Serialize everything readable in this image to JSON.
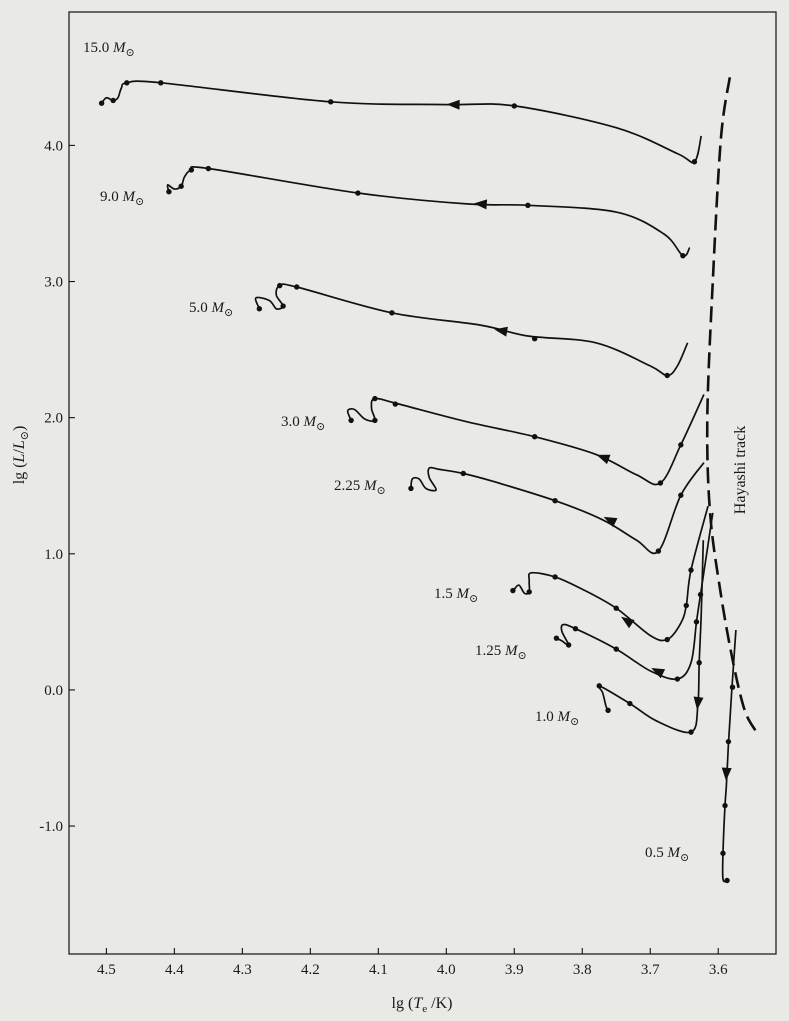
{
  "chart_data": {
    "type": "line",
    "title": "",
    "xlabel": {
      "prefix": "lg (",
      "var": "T",
      "sub": "e",
      "suffix": " /K)"
    },
    "ylabel": {
      "prefix": "lg (",
      "var": "L",
      "slash": "/",
      "var2": "L",
      "sub": "⊙",
      "suffix": ")"
    },
    "x_reversed": true,
    "xlim": [
      4.555,
      3.515
    ],
    "ylim": [
      -1.94,
      4.98
    ],
    "x_ticks": [
      {
        "value": 4.5,
        "label": "4.5"
      },
      {
        "value": 4.4,
        "label": "4.4"
      },
      {
        "value": 4.3,
        "label": "4.3"
      },
      {
        "value": 4.2,
        "label": "4.2"
      },
      {
        "value": 4.1,
        "label": "4.1"
      },
      {
        "value": 4.0,
        "label": "4.0"
      },
      {
        "value": 3.9,
        "label": "3.9"
      },
      {
        "value": 3.8,
        "label": "3.8"
      },
      {
        "value": 3.7,
        "label": "3.7"
      },
      {
        "value": 3.6,
        "label": "3.6"
      }
    ],
    "y_ticks": [
      {
        "value": 4.0,
        "label": "4.0"
      },
      {
        "value": 3.0,
        "label": "3.0"
      },
      {
        "value": 2.0,
        "label": "2.0"
      },
      {
        "value": 1.0,
        "label": "1.0"
      },
      {
        "value": 0.0,
        "label": "0.0"
      },
      {
        "value": -1.0,
        "label": "-1.0"
      }
    ],
    "grid": false,
    "colors": {
      "ink": "#111111",
      "background": "#e9e9e6"
    },
    "annotations": [
      {
        "text": "Hayashi track"
      }
    ],
    "hayashi_track": [
      [
        3.583,
        4.5
      ],
      [
        3.596,
        4.05
      ],
      [
        3.608,
        3.0
      ],
      [
        3.616,
        2.0
      ],
      [
        3.612,
        1.3
      ],
      [
        3.596,
        0.7
      ],
      [
        3.578,
        0.2
      ],
      [
        3.561,
        -0.15
      ],
      [
        3.545,
        -0.3
      ]
    ],
    "series": [
      {
        "label": {
          "mass": "15.0",
          "unit": "M",
          "sub": "⊙"
        },
        "points": [
          [
            3.625,
            4.07
          ],
          [
            3.635,
            3.88
          ],
          [
            3.66,
            3.94
          ],
          [
            3.75,
            4.13
          ],
          [
            3.9,
            4.29
          ],
          [
            4.0,
            4.3
          ],
          [
            4.17,
            4.32
          ],
          [
            4.42,
            4.46
          ],
          [
            4.47,
            4.46
          ],
          [
            4.478,
            4.42
          ],
          [
            4.483,
            4.35
          ],
          [
            4.49,
            4.33
          ],
          [
            4.5,
            4.35
          ],
          [
            4.507,
            4.31
          ]
        ],
        "dots": [
          [
            3.635,
            3.88
          ],
          [
            3.9,
            4.29
          ],
          [
            4.17,
            4.32
          ],
          [
            4.42,
            4.46
          ],
          [
            4.47,
            4.46
          ],
          [
            4.49,
            4.33
          ],
          [
            4.507,
            4.31
          ]
        ],
        "arrows": [
          [
            3.99,
            4.3
          ]
        ]
      },
      {
        "label": {
          "mass": "9.0",
          "unit": "M",
          "sub": "⊙"
        },
        "points": [
          [
            3.642,
            3.25
          ],
          [
            3.652,
            3.19
          ],
          [
            3.68,
            3.35
          ],
          [
            3.75,
            3.51
          ],
          [
            3.88,
            3.56
          ],
          [
            3.97,
            3.57
          ],
          [
            4.13,
            3.65
          ],
          [
            4.35,
            3.83
          ],
          [
            4.375,
            3.82
          ],
          [
            4.385,
            3.77
          ],
          [
            4.39,
            3.7
          ],
          [
            4.4,
            3.68
          ],
          [
            4.41,
            3.71
          ],
          [
            4.408,
            3.66
          ]
        ],
        "dots": [
          [
            3.652,
            3.19
          ],
          [
            3.88,
            3.56
          ],
          [
            4.13,
            3.65
          ],
          [
            4.35,
            3.83
          ],
          [
            4.375,
            3.82
          ],
          [
            4.39,
            3.7
          ],
          [
            4.408,
            3.66
          ]
        ],
        "arrows": [
          [
            3.95,
            3.57
          ]
        ]
      },
      {
        "label": {
          "mass": "5.0",
          "unit": "M",
          "sub": "⊙"
        },
        "points": [
          [
            3.645,
            2.55
          ],
          [
            3.66,
            2.38
          ],
          [
            3.675,
            2.31
          ],
          [
            3.7,
            2.38
          ],
          [
            3.78,
            2.55
          ],
          [
            3.88,
            2.6
          ],
          [
            3.95,
            2.68
          ],
          [
            4.08,
            2.77
          ],
          [
            4.22,
            2.96
          ],
          [
            4.245,
            2.97
          ],
          [
            4.25,
            2.9
          ],
          [
            4.24,
            2.82
          ],
          [
            4.25,
            2.8
          ],
          [
            4.26,
            2.86
          ],
          [
            4.28,
            2.88
          ],
          [
            4.275,
            2.8
          ]
        ],
        "dots": [
          [
            3.675,
            2.31
          ],
          [
            3.87,
            2.58
          ],
          [
            4.08,
            2.77
          ],
          [
            4.22,
            2.96
          ],
          [
            4.245,
            2.97
          ],
          [
            4.24,
            2.82
          ],
          [
            4.275,
            2.8
          ]
        ],
        "arrows": [
          [
            3.92,
            2.64
          ]
        ]
      },
      {
        "label": {
          "mass": "3.0",
          "unit": "M",
          "sub": "⊙"
        },
        "points": [
          [
            3.621,
            2.17
          ],
          [
            3.655,
            1.8
          ],
          [
            3.685,
            1.52
          ],
          [
            3.72,
            1.58
          ],
          [
            3.78,
            1.73
          ],
          [
            3.87,
            1.86
          ],
          [
            3.97,
            1.97
          ],
          [
            4.07,
            2.1
          ],
          [
            4.105,
            2.14
          ],
          [
            4.11,
            2.07
          ],
          [
            4.105,
            1.98
          ],
          [
            4.12,
            1.99
          ],
          [
            4.135,
            2.06
          ],
          [
            4.145,
            2.05
          ],
          [
            4.14,
            1.98
          ]
        ],
        "dots": [
          [
            3.655,
            1.8
          ],
          [
            3.685,
            1.52
          ],
          [
            3.87,
            1.86
          ],
          [
            4.075,
            2.1
          ],
          [
            4.105,
            2.14
          ],
          [
            4.105,
            1.98
          ],
          [
            4.14,
            1.98
          ]
        ],
        "arrows": [
          [
            3.77,
            1.71
          ]
        ]
      },
      {
        "label": {
          "mass": "2.25",
          "unit": "M",
          "sub": "⊙"
        },
        "points": [
          [
            3.621,
            1.67
          ],
          [
            3.655,
            1.43
          ],
          [
            3.688,
            1.02
          ],
          [
            3.72,
            1.1
          ],
          [
            3.77,
            1.25
          ],
          [
            3.84,
            1.39
          ],
          [
            3.93,
            1.53
          ],
          [
            3.975,
            1.59
          ],
          [
            4.01,
            1.62
          ],
          [
            4.025,
            1.63
          ],
          [
            4.025,
            1.56
          ],
          [
            4.015,
            1.47
          ],
          [
            4.03,
            1.48
          ],
          [
            4.04,
            1.55
          ],
          [
            4.05,
            1.55
          ],
          [
            4.052,
            1.48
          ]
        ],
        "dots": [
          [
            3.655,
            1.43
          ],
          [
            3.688,
            1.02
          ],
          [
            3.84,
            1.39
          ],
          [
            3.975,
            1.59
          ],
          [
            4.052,
            1.48
          ]
        ],
        "arrows": [
          [
            3.76,
            1.25
          ]
        ]
      },
      {
        "label": {
          "mass": "1.5",
          "unit": "M",
          "sub": "⊙"
        },
        "points": [
          [
            3.615,
            1.35
          ],
          [
            3.64,
            0.88
          ],
          [
            3.647,
            0.62
          ],
          [
            3.655,
            0.49
          ],
          [
            3.675,
            0.37
          ],
          [
            3.7,
            0.4
          ],
          [
            3.75,
            0.6
          ],
          [
            3.8,
            0.74
          ],
          [
            3.84,
            0.83
          ],
          [
            3.875,
            0.86
          ],
          [
            3.878,
            0.8
          ],
          [
            3.878,
            0.72
          ],
          [
            3.885,
            0.71
          ],
          [
            3.893,
            0.77
          ],
          [
            3.9,
            0.74
          ],
          [
            3.902,
            0.73
          ]
        ],
        "dots": [
          [
            3.64,
            0.88
          ],
          [
            3.647,
            0.62
          ],
          [
            3.675,
            0.37
          ],
          [
            3.75,
            0.6
          ],
          [
            3.84,
            0.83
          ],
          [
            3.878,
            0.72
          ],
          [
            3.902,
            0.73
          ]
        ],
        "arrows": [
          [
            3.735,
            0.51
          ]
        ]
      },
      {
        "label": {
          "mass": "1.25",
          "unit": "M",
          "sub": "⊙"
        },
        "points": [
          [
            3.608,
            1.3
          ],
          [
            3.626,
            0.7
          ],
          [
            3.632,
            0.5
          ],
          [
            3.64,
            0.2
          ],
          [
            3.66,
            0.08
          ],
          [
            3.7,
            0.14
          ],
          [
            3.75,
            0.3
          ],
          [
            3.81,
            0.45
          ],
          [
            3.828,
            0.48
          ],
          [
            3.83,
            0.43
          ],
          [
            3.82,
            0.33
          ],
          [
            3.83,
            0.36
          ],
          [
            3.838,
            0.38
          ]
        ],
        "dots": [
          [
            3.626,
            0.7
          ],
          [
            3.632,
            0.5
          ],
          [
            3.66,
            0.08
          ],
          [
            3.75,
            0.3
          ],
          [
            3.81,
            0.45
          ],
          [
            3.82,
            0.33
          ],
          [
            3.838,
            0.38
          ]
        ],
        "arrows": [
          [
            3.69,
            0.14
          ]
        ]
      },
      {
        "label": {
          "mass": "1.0",
          "unit": "M",
          "sub": "⊙"
        },
        "points": [
          [
            3.622,
            1.1
          ],
          [
            3.625,
            0.55
          ],
          [
            3.628,
            0.2
          ],
          [
            3.63,
            -0.12
          ],
          [
            3.64,
            -0.31
          ],
          [
            3.69,
            -0.23
          ],
          [
            3.73,
            -0.1
          ],
          [
            3.775,
            0.03
          ],
          [
            3.77,
            -0.02
          ],
          [
            3.765,
            -0.12
          ],
          [
            3.762,
            -0.15
          ]
        ],
        "dots": [
          [
            3.628,
            0.2
          ],
          [
            3.64,
            -0.31
          ],
          [
            3.73,
            -0.1
          ],
          [
            3.775,
            0.03
          ],
          [
            3.762,
            -0.15
          ]
        ],
        "arrows": [
          [
            3.63,
            -0.1
          ]
        ]
      },
      {
        "label": {
          "mass": "0.5",
          "unit": "M",
          "sub": "⊙"
        },
        "points": [
          [
            3.574,
            0.44
          ],
          [
            3.58,
            0.0
          ],
          [
            3.585,
            -0.4
          ],
          [
            3.588,
            -0.7
          ],
          [
            3.59,
            -0.85
          ],
          [
            3.593,
            -1.2
          ],
          [
            3.593,
            -1.39
          ],
          [
            3.587,
            -1.4
          ]
        ],
        "dots": [
          [
            3.579,
            0.02
          ],
          [
            3.585,
            -0.38
          ],
          [
            3.59,
            -0.85
          ],
          [
            3.593,
            -1.2
          ],
          [
            3.587,
            -1.4
          ]
        ],
        "arrows": [
          [
            3.588,
            -0.62
          ]
        ]
      }
    ]
  }
}
